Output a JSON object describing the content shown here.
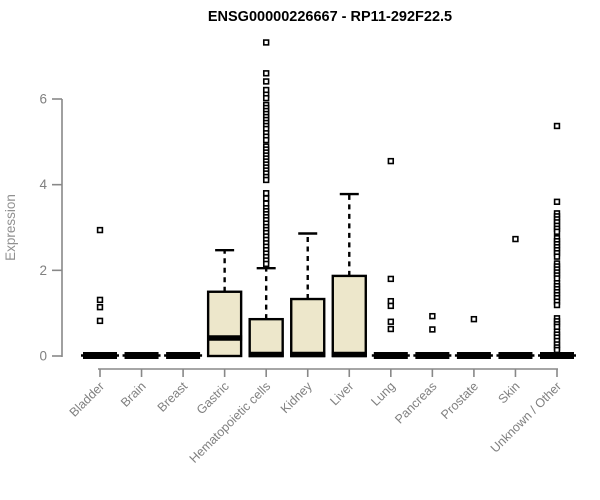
{
  "title": "ENSG00000226667 - RP11-292F22.5",
  "chart_data": {
    "type": "boxplot",
    "title": "ENSG00000226667 - RP11-292F22.5",
    "xlabel": "",
    "ylabel": "Expression",
    "yticks": [
      0,
      2,
      4,
      6
    ],
    "ylim": [
      0,
      7.6
    ],
    "grid": false,
    "legend": "none",
    "categories": [
      "Bladder",
      "Brain",
      "Breast",
      "Gastric",
      "Hematopoietic cells",
      "Kidney",
      "Liver",
      "Lung",
      "Pancreas",
      "Prostate",
      "Skin",
      "Unknown / Other"
    ],
    "boxes": [
      {
        "category": "Bladder",
        "min": 0,
        "q1": 0,
        "median": 0,
        "q3": 0,
        "whisker_high": 0,
        "outliers": [
          2.94,
          1.31,
          1.14,
          0.82
        ]
      },
      {
        "category": "Brain",
        "min": 0,
        "q1": 0,
        "median": 0,
        "q3": 0,
        "whisker_high": 0,
        "outliers": []
      },
      {
        "category": "Breast",
        "min": 0,
        "q1": 0,
        "median": 0,
        "q3": 0,
        "whisker_high": 0,
        "outliers": []
      },
      {
        "category": "Gastric",
        "min": 0,
        "q1": 0,
        "median": 0.42,
        "q3": 1.5,
        "whisker_high": 2.47,
        "outliers": []
      },
      {
        "category": "Hematopoietic cells",
        "min": 0,
        "q1": 0,
        "median": 0,
        "q3": 0.86,
        "whisker_high": 2.05,
        "outliers": [
          7.32,
          6.6,
          6.41,
          6.21,
          6.1,
          6.02,
          5.86,
          5.79,
          5.72,
          5.65,
          5.58,
          5.51,
          5.44,
          5.37,
          5.3,
          5.2,
          5.12,
          5.04,
          4.89,
          4.82,
          4.75,
          4.68,
          4.61,
          4.54,
          4.47,
          4.4,
          4.33,
          4.26,
          4.18,
          4.11,
          3.8,
          3.68,
          3.56,
          3.45,
          3.38,
          3.31,
          3.24,
          3.17,
          3.09,
          3.01,
          2.94,
          2.87,
          2.79,
          2.71,
          2.63,
          2.55,
          2.47,
          2.39,
          2.31,
          2.23,
          2.15
        ]
      },
      {
        "category": "Kidney",
        "min": 0,
        "q1": 0,
        "median": 0,
        "q3": 1.33,
        "whisker_high": 2.86,
        "outliers": []
      },
      {
        "category": "Liver",
        "min": 0,
        "q1": 0,
        "median": 0,
        "q3": 1.87,
        "whisker_high": 3.78,
        "outliers": []
      },
      {
        "category": "Lung",
        "min": 0,
        "q1": 0,
        "median": 0,
        "q3": 0,
        "whisker_high": 0,
        "outliers": [
          4.55,
          1.8,
          1.28,
          1.17,
          0.8,
          0.63
        ]
      },
      {
        "category": "Pancreas",
        "min": 0,
        "q1": 0,
        "median": 0,
        "q3": 0,
        "whisker_high": 0,
        "outliers": [
          0.93,
          0.62
        ]
      },
      {
        "category": "Prostate",
        "min": 0,
        "q1": 0,
        "median": 0,
        "q3": 0,
        "whisker_high": 0,
        "outliers": [
          0.86
        ]
      },
      {
        "category": "Skin",
        "min": 0,
        "q1": 0,
        "median": 0,
        "q3": 0,
        "whisker_high": 0,
        "outliers": [
          2.73
        ]
      },
      {
        "category": "Unknown / Other",
        "min": 0,
        "q1": 0,
        "median": 0,
        "q3": 0,
        "whisker_high": 0,
        "outliers": [
          5.37,
          3.6,
          3.33,
          3.26,
          3.19,
          3.12,
          3.04,
          2.97,
          2.9,
          2.75,
          2.68,
          2.61,
          2.54,
          2.47,
          2.4,
          2.32,
          2.16,
          2.09,
          2.02,
          1.95,
          1.88,
          1.81,
          1.7,
          1.63,
          1.56,
          1.49,
          1.42,
          1.35,
          1.27,
          1.19,
          0.88,
          0.81,
          0.74,
          0.68,
          0.57,
          0.5,
          0.43,
          0.35,
          0.27,
          0.2,
          0.14
        ]
      }
    ],
    "colors": {
      "box_fill": "#EDE7CB",
      "box_stroke": "#000000",
      "axis": "#888888",
      "tick_text": "#808080",
      "title_text": "#000000",
      "background": "#FFFFFF"
    }
  }
}
